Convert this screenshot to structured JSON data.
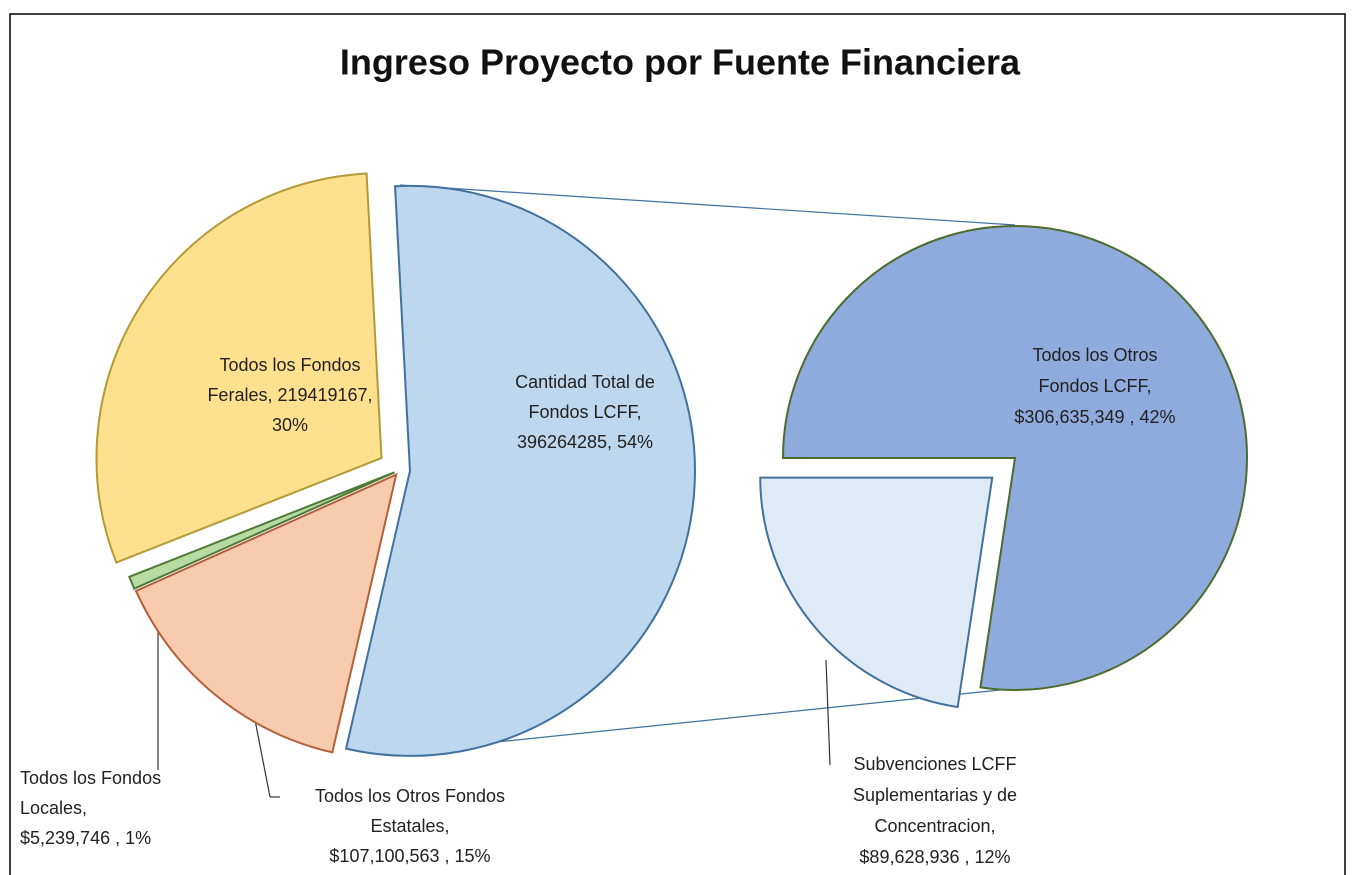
{
  "chart_data": {
    "type": "pie-of-pie",
    "title": "Ingreso Proyecto por Fuente Financiera",
    "values": [
      219419167,
      5239746,
      107100563,
      396264285
    ],
    "labels": [
      [
        "Todos los Fondos",
        "Ferales, 219419167,",
        "30%"
      ],
      [
        "Todos los Fondos",
        "Locales,",
        "$5,239,746 , 1%"
      ],
      [
        "Todos los Otros Fondos",
        "Estatales,",
        "$107,100,563 , 15%"
      ],
      [
        "Cantidad Total de",
        "Fondos LCFF,",
        "396264285, 54%"
      ]
    ],
    "colors": [
      "#ffe08f",
      "#b7dba0",
      "#f8cbad",
      "#bdd7ee"
    ],
    "secondary": {
      "values": [
        306635349,
        89628936
      ],
      "labels": [
        [
          "Todos los Otros",
          "Fondos LCFF,",
          "$306,635,349 , 42%"
        ],
        [
          "Subvenciones LCFF",
          "Suplementarias y de",
          "Concentracion,",
          "$89,628,936 , 12%"
        ]
      ],
      "colors": [
        "#8faadc",
        "#deebf7"
      ]
    }
  }
}
